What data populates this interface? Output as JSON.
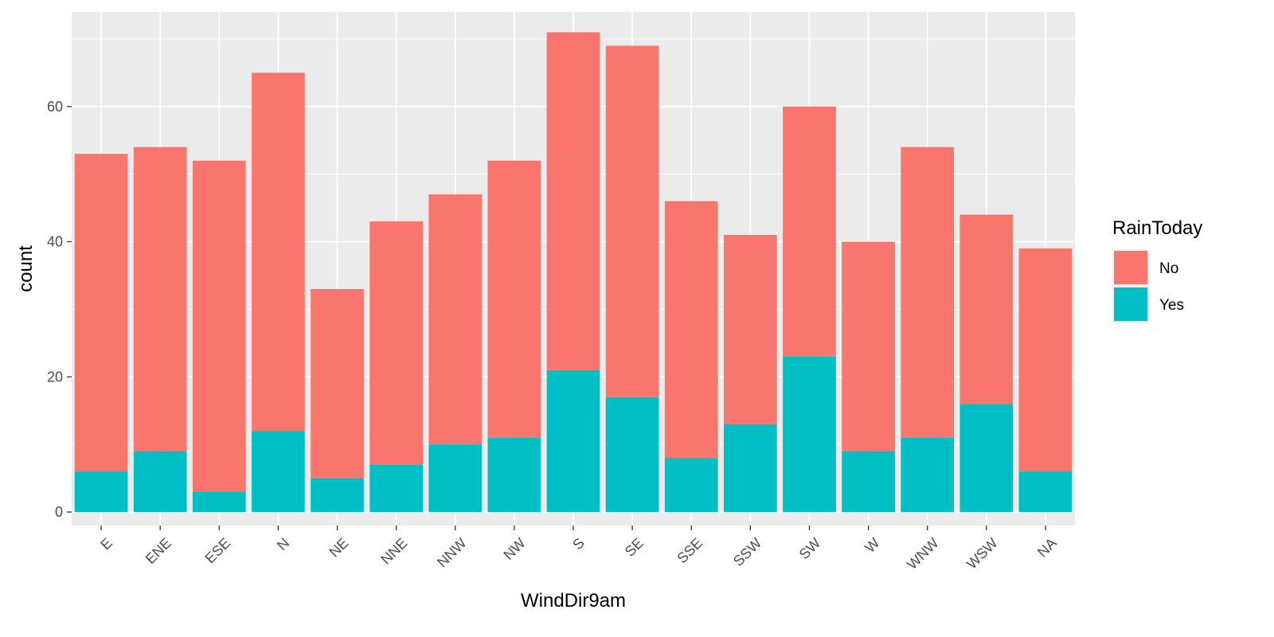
{
  "chart_data": {
    "type": "bar",
    "stacked": true,
    "title": "",
    "xlabel": "WindDir9am",
    "ylabel": "count",
    "ylim": [
      -2,
      74
    ],
    "yticks": [
      0,
      20,
      40,
      60
    ],
    "categories": [
      "E",
      "ENE",
      "ESE",
      "N",
      "NE",
      "NNE",
      "NNW",
      "NW",
      "S",
      "SE",
      "SSE",
      "SSW",
      "SW",
      "W",
      "WNW",
      "WSW",
      "NA"
    ],
    "series": [
      {
        "name": "No",
        "color": "#F8766D",
        "values": [
          47,
          45,
          49,
          53,
          28,
          36,
          37,
          41,
          50,
          52,
          38,
          28,
          37,
          31,
          43,
          28,
          33
        ]
      },
      {
        "name": "Yes",
        "color": "#00BFC4",
        "values": [
          6,
          9,
          3,
          12,
          5,
          7,
          10,
          11,
          21,
          17,
          8,
          13,
          23,
          9,
          11,
          16,
          6
        ]
      }
    ],
    "stack_order_bottom_to_top": [
      "Yes",
      "No"
    ],
    "grid": true,
    "legend": {
      "title": "RainToday",
      "position": "right"
    }
  },
  "colors": {
    "panel_background": "#EBEBEB",
    "gridline": "#FFFFFF",
    "tick_label": "#4D4D4D",
    "tick_mark": "#333333"
  }
}
